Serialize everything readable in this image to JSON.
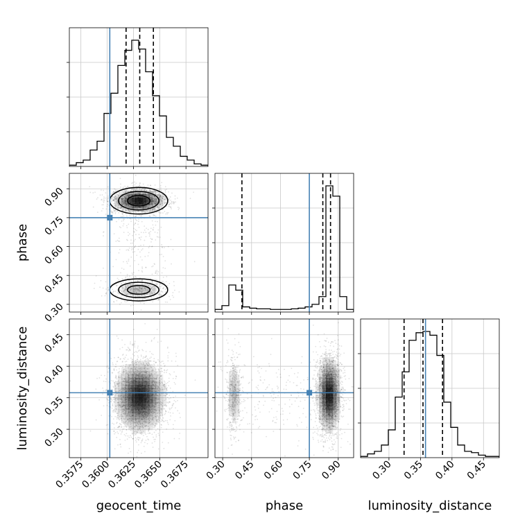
{
  "chart_data": {
    "type": "corner",
    "parameters": [
      {
        "name": "geocent_time",
        "label": "geocent_time",
        "range": [
          0.3564,
          0.3696
        ],
        "ticks": [
          0.3575,
          0.36,
          0.3625,
          0.365,
          0.3675
        ],
        "tick_labels": [
          "0.3575",
          "0.3600",
          "0.3625",
          "0.3650",
          "0.3675"
        ],
        "truth": 0.36025,
        "quantiles": [
          0.3618,
          0.3631,
          0.3644
        ]
      },
      {
        "name": "phase",
        "label": "phase",
        "range": [
          0.26,
          0.98
        ],
        "ticks": [
          0.3,
          0.45,
          0.6,
          0.75,
          0.9
        ],
        "tick_labels": [
          "0.30",
          "0.45",
          "0.60",
          "0.75",
          "0.90"
        ],
        "truth": 0.75,
        "quantiles": [
          0.4,
          0.82,
          0.86
        ]
      },
      {
        "name": "luminosity_distance",
        "label": "luminosity_distance",
        "range": [
          0.255,
          0.475
        ],
        "ticks": [
          0.3,
          0.35,
          0.4,
          0.45
        ],
        "tick_labels": [
          "0.30",
          "0.35",
          "0.40",
          "0.45"
        ],
        "truth": 0.358,
        "quantiles": [
          0.324,
          0.354,
          0.385
        ]
      }
    ],
    "marginals": [
      {
        "param": "geocent_time",
        "bin_edges": [
          0.3564,
          0.35706,
          0.35772,
          0.35838,
          0.35904,
          0.3597,
          0.36036,
          0.36102,
          0.36168,
          0.36234,
          0.363,
          0.36366,
          0.36432,
          0.36498,
          0.36564,
          0.3663,
          0.36696,
          0.36762,
          0.36828,
          0.36894,
          0.3696
        ],
        "heights": [
          0.01,
          0.03,
          0.05,
          0.13,
          0.2,
          0.42,
          0.58,
          0.8,
          0.92,
          1.0,
          0.93,
          0.75,
          0.56,
          0.4,
          0.23,
          0.16,
          0.08,
          0.05,
          0.02,
          0.01
        ]
      },
      {
        "param": "phase",
        "bin_edges": [
          0.26,
          0.296,
          0.332,
          0.368,
          0.404,
          0.44,
          0.476,
          0.512,
          0.548,
          0.584,
          0.62,
          0.656,
          0.692,
          0.728,
          0.764,
          0.8,
          0.836,
          0.872,
          0.908,
          0.944,
          0.98
        ],
        "heights": [
          0.02,
          0.05,
          0.21,
          0.17,
          0.04,
          0.03,
          0.025,
          0.025,
          0.02,
          0.02,
          0.02,
          0.025,
          0.03,
          0.04,
          0.06,
          0.12,
          0.98,
          0.9,
          0.12,
          0.02
        ]
      },
      {
        "param": "luminosity_distance",
        "bin_edges": [
          0.255,
          0.266,
          0.277,
          0.288,
          0.299,
          0.31,
          0.321,
          0.332,
          0.343,
          0.354,
          0.365,
          0.376,
          0.387,
          0.398,
          0.409,
          0.42,
          0.431,
          0.442,
          0.453,
          0.464,
          0.475
        ],
        "heights": [
          0.01,
          0.03,
          0.05,
          0.1,
          0.22,
          0.48,
          0.68,
          0.93,
          0.99,
          1.0,
          0.97,
          0.81,
          0.44,
          0.24,
          0.1,
          0.05,
          0.04,
          0.02,
          0.01,
          0.01
        ]
      }
    ],
    "joint": [
      {
        "x": "geocent_time",
        "y": "phase",
        "modes": [
          {
            "cx": 0.363,
            "cy": 0.838,
            "sx": 0.0012,
            "sy": 0.03,
            "weight": 0.7
          },
          {
            "cx": 0.363,
            "cy": 0.375,
            "sx": 0.0012,
            "sy": 0.025,
            "weight": 0.2
          },
          {
            "cx": 0.363,
            "cy": 0.6,
            "sx": 0.0014,
            "sy": 0.12,
            "weight": 0.1
          }
        ]
      },
      {
        "x": "geocent_time",
        "y": "luminosity_distance",
        "modes": [
          {
            "cx": 0.3631,
            "cy": 0.352,
            "sx": 0.0012,
            "sy": 0.028,
            "weight": 1.0
          }
        ]
      },
      {
        "x": "phase",
        "y": "luminosity_distance",
        "modes": [
          {
            "cx": 0.852,
            "cy": 0.355,
            "sx": 0.03,
            "sy": 0.03,
            "weight": 0.72
          },
          {
            "cx": 0.358,
            "cy": 0.355,
            "sx": 0.02,
            "sy": 0.03,
            "weight": 0.16
          },
          {
            "cx": 0.6,
            "cy": 0.355,
            "sx": 0.16,
            "sy": 0.03,
            "weight": 0.12
          }
        ]
      }
    ],
    "colors": {
      "truth": "#4682b4",
      "hist": "#000000",
      "grid": "#c8c8c8",
      "quantile": "#000000"
    },
    "grid": true,
    "truth_markers": true
  }
}
